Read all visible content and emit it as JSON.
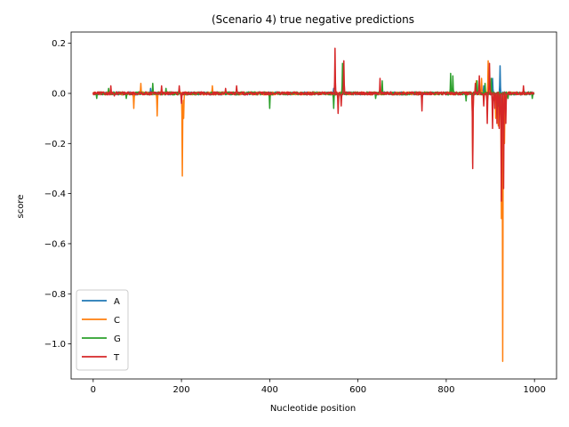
{
  "chart_data": {
    "type": "line",
    "title": "(Scenario 4) true negative predictions",
    "xlabel": "Nucleotide position",
    "ylabel": "score",
    "xlim": [
      -50,
      1050
    ],
    "ylim": [
      -1.14,
      0.245
    ],
    "x_ticks": [
      0,
      200,
      400,
      600,
      800,
      1000
    ],
    "y_ticks": [
      0.2,
      0.0,
      -0.2,
      -0.4,
      -0.6,
      -0.8,
      -1.0
    ],
    "x_tick_labels": [
      "0",
      "200",
      "400",
      "600",
      "800",
      "1000"
    ],
    "y_tick_labels": [
      "0.2",
      "0.0",
      "−0.2",
      "−0.4",
      "−0.6",
      "−0.8",
      "−1.0"
    ],
    "grid": false,
    "legend_position": "lower-left",
    "x_range": [
      0,
      999
    ],
    "series": [
      {
        "name": "A",
        "color": "#1f77b4",
        "spikes": [
          [
            130,
            0.02
          ],
          [
            545,
            0.02
          ],
          [
            860,
            -0.02
          ],
          [
            885,
            0.03
          ],
          [
            905,
            0.06
          ],
          [
            922,
            0.11
          ],
          [
            926,
            -0.2
          ],
          [
            930,
            -0.05
          ]
        ]
      },
      {
        "name": "C",
        "color": "#ff7f0e",
        "spikes": [
          [
            92,
            -0.06
          ],
          [
            108,
            0.04
          ],
          [
            145,
            -0.09
          ],
          [
            202,
            -0.33
          ],
          [
            205,
            -0.1
          ],
          [
            270,
            0.03
          ],
          [
            860,
            -0.28
          ],
          [
            868,
            0.05
          ],
          [
            880,
            0.06
          ],
          [
            895,
            0.13
          ],
          [
            912,
            -0.1
          ],
          [
            918,
            -0.13
          ],
          [
            925,
            -0.5
          ],
          [
            928,
            -1.07
          ],
          [
            932,
            -0.2
          ]
        ]
      },
      {
        "name": "G",
        "color": "#2ca02c",
        "spikes": [
          [
            8,
            -0.02
          ],
          [
            35,
            0.02
          ],
          [
            75,
            -0.02
          ],
          [
            135,
            0.04
          ],
          [
            165,
            0.02
          ],
          [
            400,
            -0.06
          ],
          [
            545,
            -0.06
          ],
          [
            565,
            0.12
          ],
          [
            640,
            -0.02
          ],
          [
            655,
            0.05
          ],
          [
            810,
            0.08
          ],
          [
            815,
            0.07
          ],
          [
            845,
            -0.03
          ],
          [
            870,
            0.05
          ],
          [
            888,
            0.04
          ],
          [
            902,
            0.06
          ],
          [
            918,
            -0.05
          ],
          [
            940,
            -0.02
          ],
          [
            995,
            -0.02
          ]
        ]
      },
      {
        "name": "T",
        "color": "#d62728",
        "spikes": [
          [
            40,
            0.03
          ],
          [
            48,
            -0.01
          ],
          [
            155,
            0.03
          ],
          [
            195,
            0.03
          ],
          [
            200,
            -0.04
          ],
          [
            300,
            0.02
          ],
          [
            325,
            0.03
          ],
          [
            548,
            0.18
          ],
          [
            555,
            -0.08
          ],
          [
            562,
            -0.05
          ],
          [
            568,
            0.13
          ],
          [
            650,
            0.06
          ],
          [
            745,
            -0.07
          ],
          [
            860,
            -0.3
          ],
          [
            866,
            0.04
          ],
          [
            875,
            0.07
          ],
          [
            885,
            -0.05
          ],
          [
            893,
            -0.12
          ],
          [
            898,
            0.12
          ],
          [
            905,
            -0.14
          ],
          [
            910,
            -0.06
          ],
          [
            915,
            -0.12
          ],
          [
            920,
            -0.14
          ],
          [
            925,
            -0.43
          ],
          [
            930,
            -0.38
          ],
          [
            935,
            -0.12
          ],
          [
            975,
            0.03
          ]
        ]
      }
    ]
  }
}
